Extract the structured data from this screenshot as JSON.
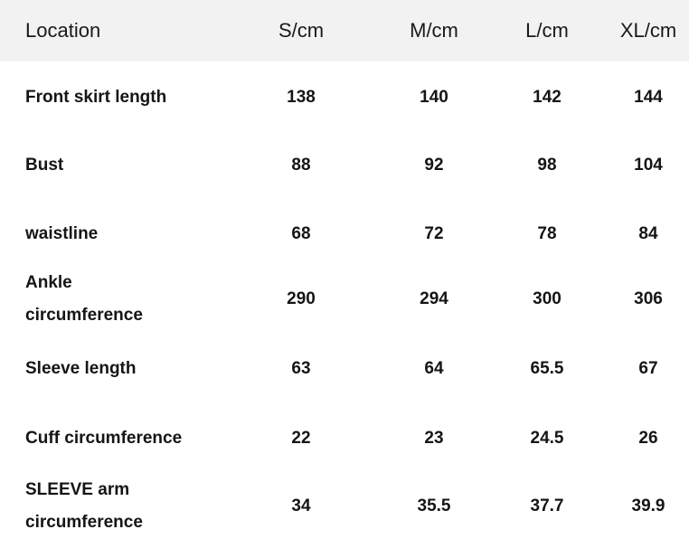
{
  "table": {
    "headers": [
      "Location",
      "S/cm",
      "M/cm",
      "L/cm",
      "XL/cm"
    ],
    "rows": [
      {
        "label": "Front skirt length",
        "values": [
          "138",
          "140",
          "142",
          "144"
        ]
      },
      {
        "label": "Bust",
        "values": [
          "88",
          "92",
          "98",
          "104"
        ]
      },
      {
        "label": "waistline",
        "values": [
          "68",
          "72",
          "78",
          "84"
        ]
      },
      {
        "label": "Ankle circumference",
        "values": [
          "290",
          "294",
          "300",
          "306"
        ]
      },
      {
        "label": "Sleeve length",
        "values": [
          "63",
          "64",
          "65.5",
          "67"
        ]
      },
      {
        "label": "Cuff circumference",
        "values": [
          "22",
          "23",
          "24.5",
          "26"
        ]
      },
      {
        "label": "SLEEVE arm circumference",
        "values": [
          "34",
          "35.5",
          "37.7",
          "39.9"
        ]
      }
    ]
  },
  "colors": {
    "header_background": "#f2f2f2",
    "text": "#151515"
  }
}
